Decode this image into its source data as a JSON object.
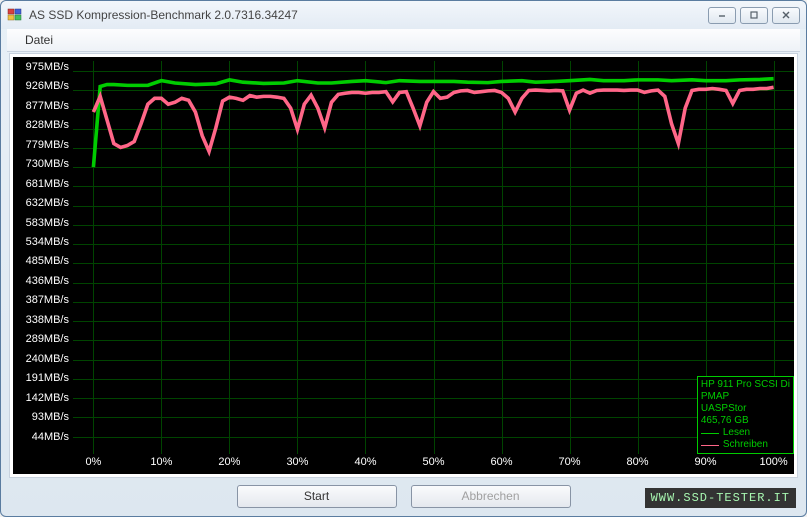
{
  "window": {
    "title": "AS SSD Kompression-Benchmark 2.0.7316.34247"
  },
  "menu": {
    "file": "Datei"
  },
  "chart": {
    "type": "line",
    "background_color": "#000000",
    "grid_color": "#004400",
    "axis_label_color": "#ffffff",
    "axis_fontsize": 11,
    "y_unit": "MB/s",
    "y_ticks": [
      44,
      93,
      142,
      191,
      240,
      289,
      338,
      387,
      436,
      485,
      534,
      583,
      632,
      681,
      730,
      779,
      828,
      877,
      926,
      975
    ],
    "ylim": [
      0,
      1000
    ],
    "x_unit": "%",
    "x_ticks": [
      0,
      10,
      20,
      30,
      40,
      50,
      60,
      70,
      80,
      90,
      100
    ],
    "xlim": [
      -3,
      103
    ],
    "series": [
      {
        "name": "Lesen",
        "color": "#00cc00",
        "width": 1.2,
        "points": [
          [
            0,
            730
          ],
          [
            1,
            935
          ],
          [
            2,
            940
          ],
          [
            3,
            940
          ],
          [
            5,
            938
          ],
          [
            8,
            938
          ],
          [
            10,
            950
          ],
          [
            12,
            944
          ],
          [
            15,
            940
          ],
          [
            18,
            942
          ],
          [
            20,
            952
          ],
          [
            22,
            946
          ],
          [
            25,
            943
          ],
          [
            28,
            944
          ],
          [
            30,
            950
          ],
          [
            33,
            944
          ],
          [
            35,
            944
          ],
          [
            38,
            948
          ],
          [
            40,
            950
          ],
          [
            43,
            945
          ],
          [
            45,
            950
          ],
          [
            48,
            948
          ],
          [
            50,
            948
          ],
          [
            53,
            948
          ],
          [
            55,
            946
          ],
          [
            58,
            945
          ],
          [
            60,
            948
          ],
          [
            63,
            950
          ],
          [
            65,
            946
          ],
          [
            68,
            948
          ],
          [
            70,
            950
          ],
          [
            73,
            953
          ],
          [
            75,
            950
          ],
          [
            78,
            950
          ],
          [
            80,
            952
          ],
          [
            83,
            952
          ],
          [
            85,
            950
          ],
          [
            88,
            952
          ],
          [
            90,
            950
          ],
          [
            93,
            950
          ],
          [
            95,
            952
          ],
          [
            98,
            953
          ],
          [
            100,
            955
          ]
        ]
      },
      {
        "name": "Schreiben",
        "color": "#ff6688",
        "width": 1.2,
        "points": [
          [
            0,
            870
          ],
          [
            1,
            910
          ],
          [
            2,
            850
          ],
          [
            3,
            790
          ],
          [
            4,
            780
          ],
          [
            5,
            785
          ],
          [
            6,
            795
          ],
          [
            7,
            840
          ],
          [
            8,
            890
          ],
          [
            9,
            905
          ],
          [
            10,
            905
          ],
          [
            11,
            890
          ],
          [
            12,
            895
          ],
          [
            13,
            905
          ],
          [
            14,
            900
          ],
          [
            15,
            870
          ],
          [
            16,
            810
          ],
          [
            17,
            770
          ],
          [
            18,
            830
          ],
          [
            19,
            898
          ],
          [
            20,
            908
          ],
          [
            21,
            905
          ],
          [
            22,
            900
          ],
          [
            23,
            912
          ],
          [
            24,
            908
          ],
          [
            25,
            910
          ],
          [
            26,
            910
          ],
          [
            27,
            908
          ],
          [
            28,
            905
          ],
          [
            29,
            880
          ],
          [
            30,
            826
          ],
          [
            31,
            890
          ],
          [
            32,
            913
          ],
          [
            33,
            880
          ],
          [
            34,
            830
          ],
          [
            35,
            895
          ],
          [
            36,
            915
          ],
          [
            37,
            918
          ],
          [
            38,
            920
          ],
          [
            39,
            920
          ],
          [
            40,
            918
          ],
          [
            41,
            920
          ],
          [
            42,
            920
          ],
          [
            43,
            922
          ],
          [
            44,
            896
          ],
          [
            45,
            920
          ],
          [
            46,
            922
          ],
          [
            47,
            880
          ],
          [
            48,
            835
          ],
          [
            49,
            895
          ],
          [
            50,
            922
          ],
          [
            51,
            905
          ],
          [
            52,
            908
          ],
          [
            53,
            920
          ],
          [
            54,
            924
          ],
          [
            55,
            925
          ],
          [
            56,
            920
          ],
          [
            57,
            922
          ],
          [
            58,
            924
          ],
          [
            59,
            925
          ],
          [
            60,
            920
          ],
          [
            61,
            905
          ],
          [
            62,
            870
          ],
          [
            63,
            905
          ],
          [
            64,
            925
          ],
          [
            65,
            926
          ],
          [
            66,
            925
          ],
          [
            67,
            924
          ],
          [
            68,
            925
          ],
          [
            69,
            924
          ],
          [
            70,
            875
          ],
          [
            71,
            918
          ],
          [
            72,
            926
          ],
          [
            73,
            918
          ],
          [
            74,
            925
          ],
          [
            75,
            926
          ],
          [
            76,
            926
          ],
          [
            77,
            926
          ],
          [
            78,
            925
          ],
          [
            79,
            926
          ],
          [
            80,
            926
          ],
          [
            81,
            920
          ],
          [
            82,
            924
          ],
          [
            83,
            926
          ],
          [
            84,
            910
          ],
          [
            85,
            840
          ],
          [
            86,
            790
          ],
          [
            87,
            880
          ],
          [
            88,
            925
          ],
          [
            89,
            928
          ],
          [
            90,
            928
          ],
          [
            91,
            930
          ],
          [
            92,
            928
          ],
          [
            93,
            925
          ],
          [
            94,
            892
          ],
          [
            95,
            925
          ],
          [
            96,
            928
          ],
          [
            97,
            928
          ],
          [
            98,
            930
          ],
          [
            99,
            930
          ],
          [
            100,
            933
          ]
        ]
      }
    ],
    "legend": {
      "border_color": "#00cc00",
      "text_color": "#00cc00",
      "device_line1": "HP 911 Pro SCSI Di",
      "device_line2": "PMAP",
      "driver": "UASPStor",
      "capacity": "465,76 GB",
      "read_label": "Lesen",
      "write_label": "Schreiben"
    }
  },
  "buttons": {
    "start": "Start",
    "cancel": "Abbrechen"
  },
  "watermark": "WWW.SSD-TESTER.IT"
}
